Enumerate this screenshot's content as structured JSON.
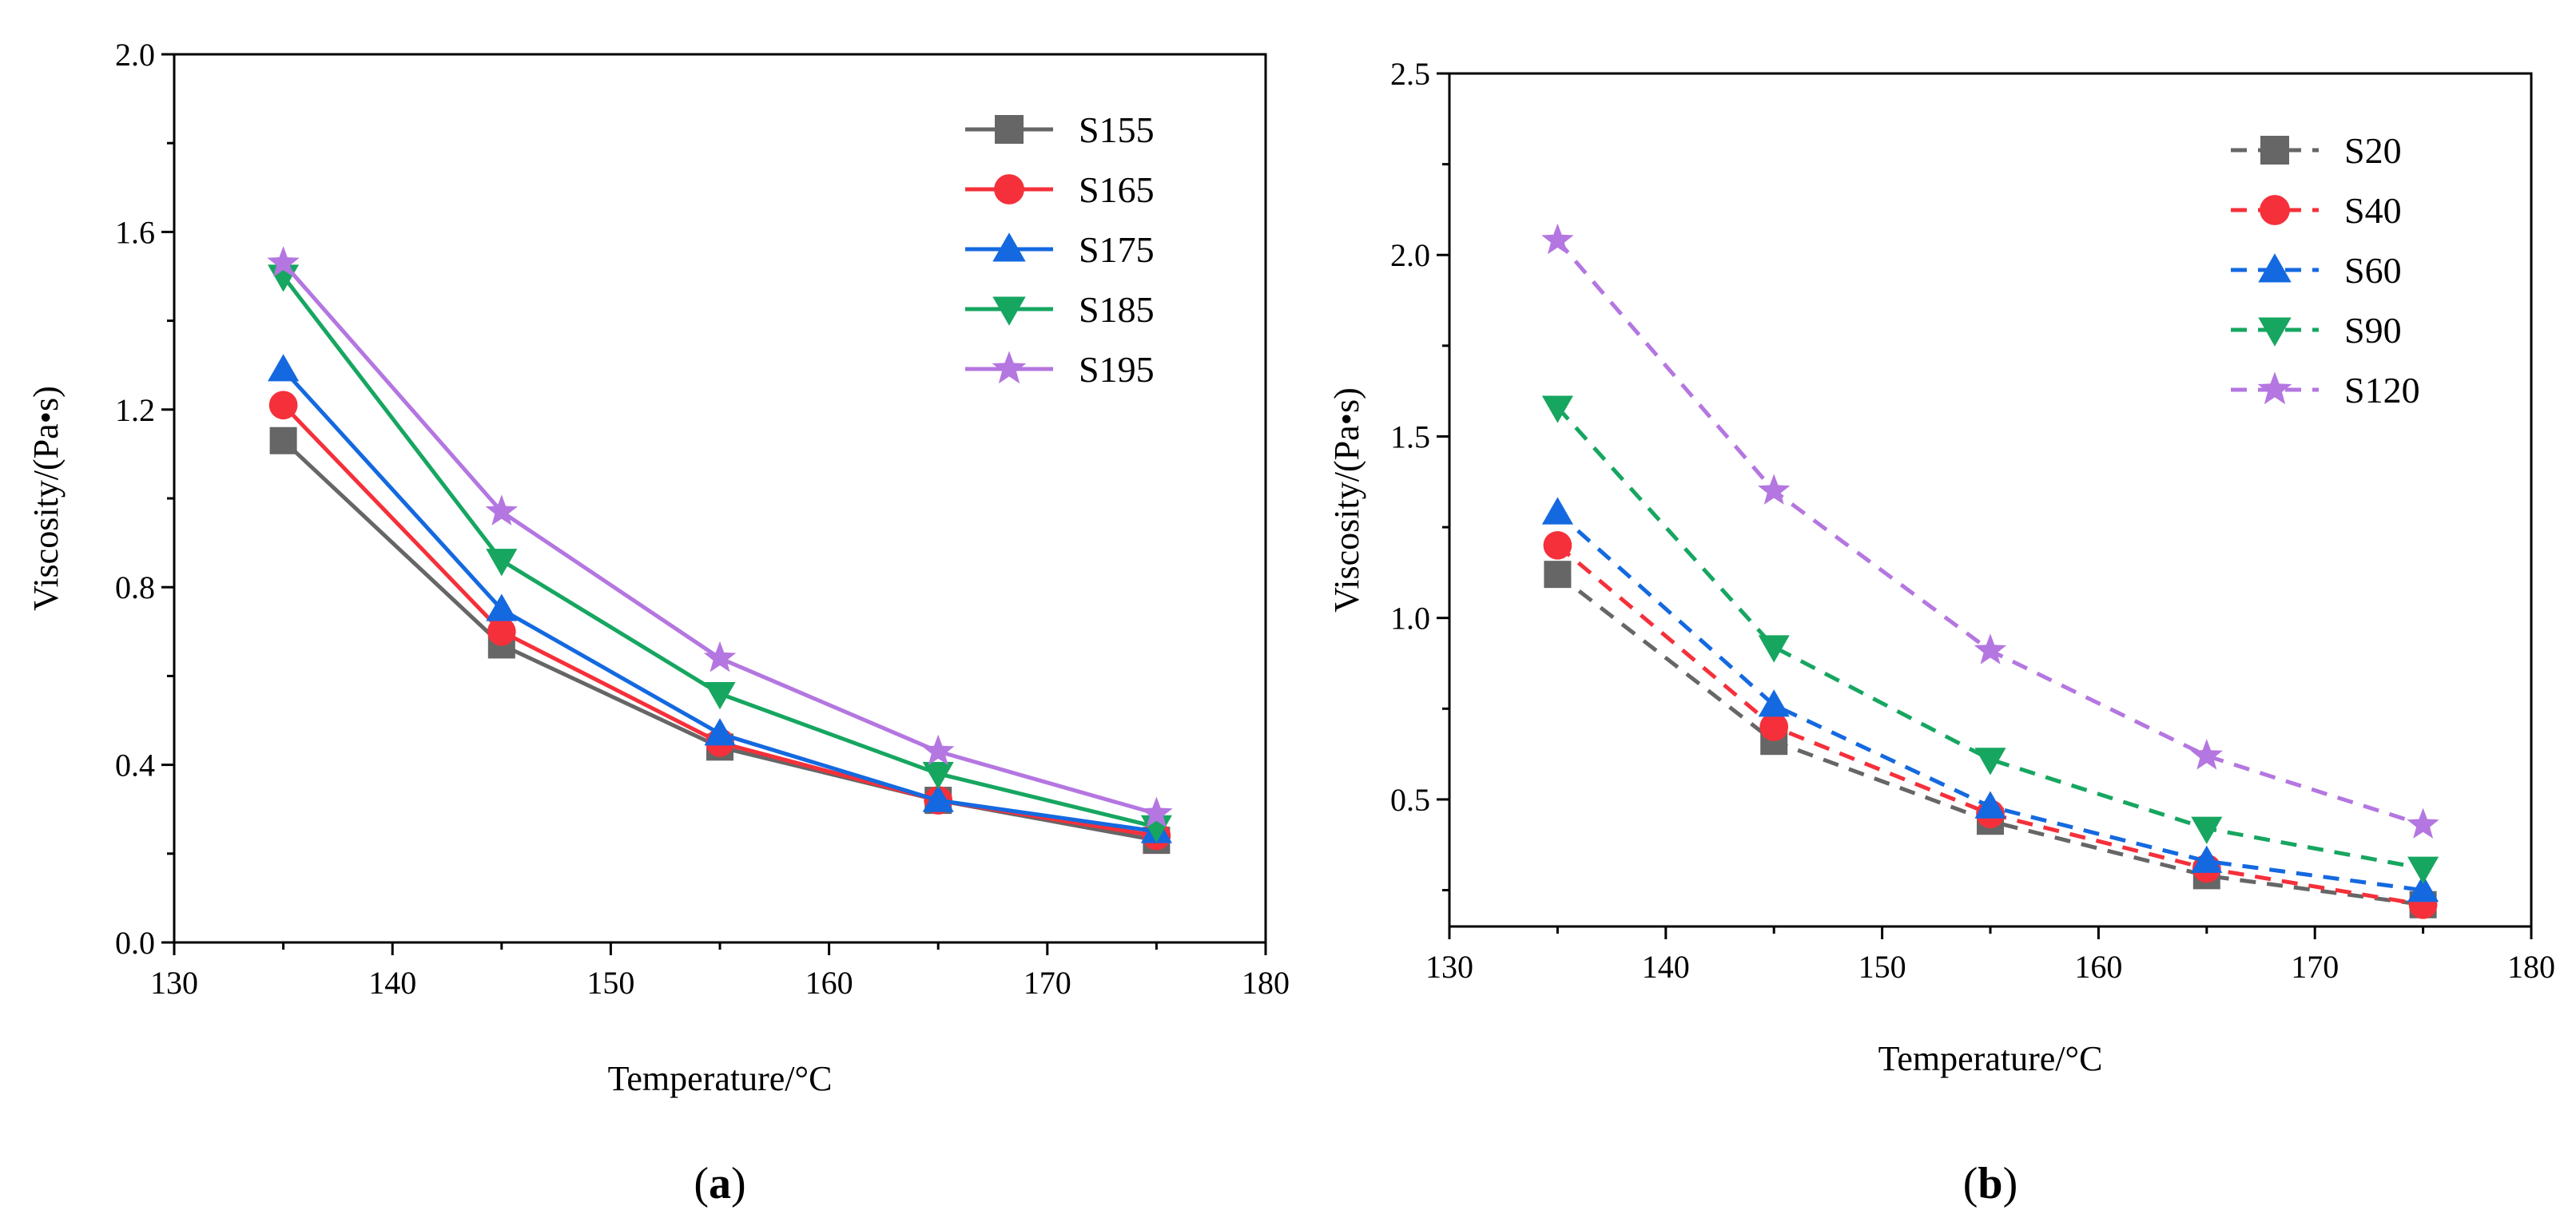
{
  "colors": {
    "series": [
      "#666666",
      "#f5303a",
      "#1469e0",
      "#16a660",
      "#b476e0"
    ]
  },
  "chart_data": [
    {
      "panel": "a",
      "panel_label": "(a)",
      "panel_letter": "a",
      "type": "line",
      "line_style": "solid",
      "xlabel": "Temperature/°C",
      "ylabel": "Viscosity/(Pa•s)",
      "xlim": [
        130,
        180
      ],
      "ylim": [
        0,
        2.0
      ],
      "xticks": [
        130,
        140,
        150,
        160,
        170,
        180
      ],
      "xtick_labels": [
        "130",
        "140",
        "150",
        "160",
        "170",
        "180"
      ],
      "yticks": [
        0,
        0.4,
        0.8,
        1.2,
        1.6,
        2.0
      ],
      "ytick_labels": [
        "0.0",
        "0.4",
        "0.8",
        "1.2",
        "1.6",
        "2.0"
      ],
      "legend_position": "top-right",
      "x": [
        135,
        145,
        155,
        165,
        175
      ],
      "series": [
        {
          "name": "S155",
          "marker": "square",
          "color": "#666666",
          "values": [
            1.13,
            0.67,
            0.44,
            0.32,
            0.23
          ]
        },
        {
          "name": "S165",
          "marker": "circle",
          "color": "#f5303a",
          "values": [
            1.21,
            0.7,
            0.45,
            0.32,
            0.24
          ]
        },
        {
          "name": "S175",
          "marker": "triangle-up",
          "color": "#1469e0",
          "values": [
            1.29,
            0.75,
            0.47,
            0.32,
            0.25
          ]
        },
        {
          "name": "S185",
          "marker": "triangle-down",
          "color": "#16a660",
          "values": [
            1.5,
            0.86,
            0.56,
            0.38,
            0.26
          ]
        },
        {
          "name": "S195",
          "marker": "star",
          "color": "#b476e0",
          "values": [
            1.53,
            0.97,
            0.64,
            0.43,
            0.29
          ]
        }
      ]
    },
    {
      "panel": "b",
      "panel_label": "(b)",
      "panel_letter": "b",
      "type": "line",
      "line_style": "dashed",
      "xlabel": "Temperature/°C",
      "ylabel": "Viscosity/(Pa•s)",
      "xlim": [
        130,
        180
      ],
      "ylim": [
        0.15,
        2.5
      ],
      "xticks": [
        130,
        140,
        150,
        160,
        170,
        180
      ],
      "xtick_labels": [
        "130",
        "140",
        "150",
        "160",
        "170",
        "180"
      ],
      "yticks": [
        0.5,
        1.0,
        1.5,
        2.0,
        2.5
      ],
      "ytick_labels": [
        "0.5",
        "1.0",
        "1.5",
        "2.0",
        "2.5"
      ],
      "legend_position": "top-right",
      "x": [
        135,
        145,
        155,
        165,
        175
      ],
      "series": [
        {
          "name": "S20",
          "marker": "square",
          "color": "#666666",
          "values": [
            1.12,
            0.66,
            0.44,
            0.29,
            0.21
          ]
        },
        {
          "name": "S40",
          "marker": "circle",
          "color": "#f5303a",
          "values": [
            1.2,
            0.7,
            0.46,
            0.31,
            0.21
          ]
        },
        {
          "name": "S60",
          "marker": "triangle-up",
          "color": "#1469e0",
          "values": [
            1.29,
            0.76,
            0.48,
            0.33,
            0.25
          ]
        },
        {
          "name": "S90",
          "marker": "triangle-down",
          "color": "#16a660",
          "values": [
            1.58,
            0.92,
            0.61,
            0.42,
            0.31
          ]
        },
        {
          "name": "S120",
          "marker": "star",
          "color": "#b476e0",
          "values": [
            2.04,
            1.35,
            0.91,
            0.62,
            0.43
          ]
        }
      ]
    }
  ]
}
